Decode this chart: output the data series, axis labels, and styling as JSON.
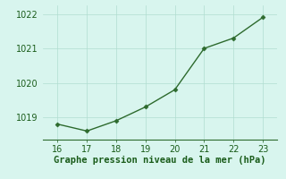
{
  "x": [
    16,
    17,
    18,
    19,
    20,
    21,
    22,
    23
  ],
  "y": [
    1018.8,
    1018.6,
    1018.9,
    1019.3,
    1019.8,
    1021.0,
    1021.3,
    1021.9
  ],
  "line_color": "#2d6a2d",
  "marker": "D",
  "marker_size": 2.5,
  "line_width": 1.0,
  "bg_color": "#d8f5ee",
  "grid_color": "#b0ddd0",
  "xlabel": "Graphe pression niveau de la mer (hPa)",
  "xlabel_color": "#1a5c1a",
  "xlabel_fontsize": 7.5,
  "xlim": [
    15.5,
    23.5
  ],
  "ylim": [
    1018.35,
    1022.25
  ],
  "yticks": [
    1019,
    1020,
    1021,
    1022
  ],
  "xticks": [
    16,
    17,
    18,
    19,
    20,
    21,
    22,
    23
  ],
  "tick_fontsize": 7,
  "tick_color": "#1a5c1a",
  "spine_color": "#2d6a2d"
}
